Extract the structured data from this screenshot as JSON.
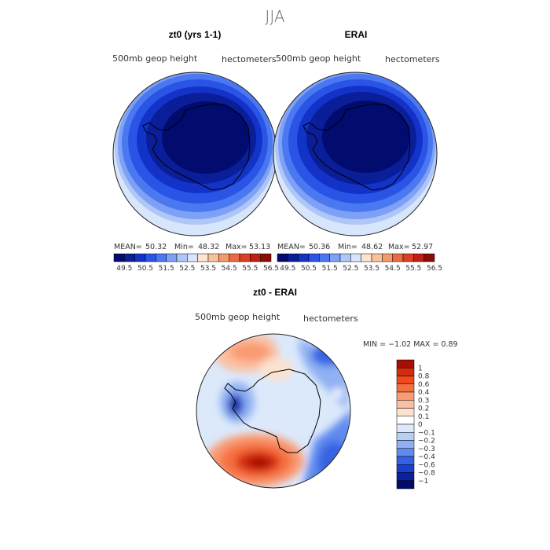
{
  "title": "JJA",
  "panels": [
    {
      "id": "model",
      "title": "zt0 (yrs 1-1)",
      "left_label": "500mb  geop  height",
      "right_label": "hectometers",
      "stats": {
        "mean_label": "MEAN=",
        "mean": "50.32",
        "min_label": "Min=",
        "min": "48.32",
        "max_label": "Max=",
        "max": "53.13"
      }
    },
    {
      "id": "obs",
      "title": "ERAI",
      "left_label": "500mb  geop  height",
      "right_label": "hectometers",
      "stats": {
        "mean_label": "MEAN=",
        "mean": "50.36",
        "min_label": "Min=",
        "min": "48.62",
        "max_label": "Max=",
        "max": "52.97"
      }
    },
    {
      "id": "diff",
      "title": "zt0 - ERAI",
      "left_label": "500mb  geop  height",
      "right_label": "hectometers",
      "stats": {
        "text": "MIN =    −1.02  MAX =    0.89"
      }
    }
  ],
  "chart_data": [
    {
      "type": "heatmap",
      "title": "zt0 (yrs 1-1)",
      "projection": "south-polar-stereographic",
      "variable": "500mb geop height",
      "units": "hectometers",
      "mean": 50.32,
      "min": 48.32,
      "max": 53.13,
      "colorbar": {
        "orientation": "horizontal",
        "ticks": [
          "49.5",
          "50.5",
          "51.5",
          "52.5",
          "53.5",
          "54.5",
          "55.5",
          "56.5"
        ],
        "colors": [
          "#020b6e",
          "#0a1e99",
          "#1232c8",
          "#2a54e6",
          "#4a78f0",
          "#7ea0f5",
          "#aec6f8",
          "#d8e6fb",
          "#fde4cf",
          "#f9c09c",
          "#f39a6e",
          "#eb6a45",
          "#dc3f24",
          "#bf2010",
          "#8a0c06"
        ]
      }
    },
    {
      "type": "heatmap",
      "title": "ERAI",
      "projection": "south-polar-stereographic",
      "variable": "500mb geop height",
      "units": "hectometers",
      "mean": 50.36,
      "min": 48.62,
      "max": 52.97,
      "colorbar": {
        "orientation": "horizontal",
        "ticks": [
          "49.5",
          "50.5",
          "51.5",
          "52.5",
          "53.5",
          "54.5",
          "55.5",
          "56.5"
        ],
        "colors": [
          "#020b6e",
          "#0a1e99",
          "#1232c8",
          "#2a54e6",
          "#4a78f0",
          "#7ea0f5",
          "#aec6f8",
          "#d8e6fb",
          "#fde4cf",
          "#f9c09c",
          "#f39a6e",
          "#eb6a45",
          "#dc3f24",
          "#bf2010",
          "#8a0c06"
        ]
      }
    },
    {
      "type": "heatmap",
      "title": "zt0 - ERAI",
      "projection": "south-polar-stereographic",
      "variable": "500mb geop height",
      "units": "hectometers",
      "min": -1.02,
      "max": 0.89,
      "colorbar": {
        "orientation": "vertical",
        "ticks": [
          "1",
          "0.8",
          "0.6",
          "0.4",
          "0.3",
          "0.2",
          "0.1",
          "0",
          "−0.1",
          "−0.2",
          "−0.3",
          "−0.4",
          "−0.6",
          "−0.8",
          "−1"
        ],
        "colors": [
          "#a50f05",
          "#d42a0e",
          "#ef4a1e",
          "#f6703f",
          "#f99a72",
          "#fbc0a1",
          "#fde2cf",
          "#ffffff",
          "#dce9fb",
          "#b8d0f8",
          "#8fb1f3",
          "#5f8aee",
          "#3463e2",
          "#1a3fd0",
          "#0c1f9e",
          "#030b6a"
        ]
      }
    }
  ]
}
